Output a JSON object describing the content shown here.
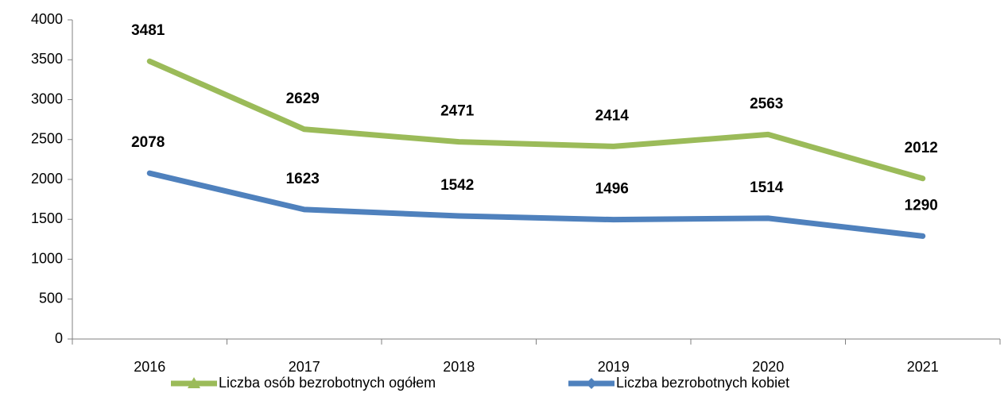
{
  "chart_data": {
    "type": "line",
    "categories": [
      "2016",
      "2017",
      "2018",
      "2019",
      "2020",
      "2021"
    ],
    "series": [
      {
        "name": "Liczba osób bezrobotnych ogółem",
        "color": "#9bbb59",
        "values": [
          3481,
          2629,
          2471,
          2414,
          2563,
          2012
        ]
      },
      {
        "name": "Liczba bezrobotnych kobiet",
        "color": "#4f81bd",
        "values": [
          2078,
          1623,
          1542,
          1496,
          1514,
          1290
        ]
      }
    ],
    "ylim": [
      0,
      4000
    ],
    "yticks": [
      0,
      500,
      1000,
      1500,
      2000,
      2500,
      3000,
      3500,
      4000
    ],
    "grid": false,
    "legend": "bottom"
  }
}
